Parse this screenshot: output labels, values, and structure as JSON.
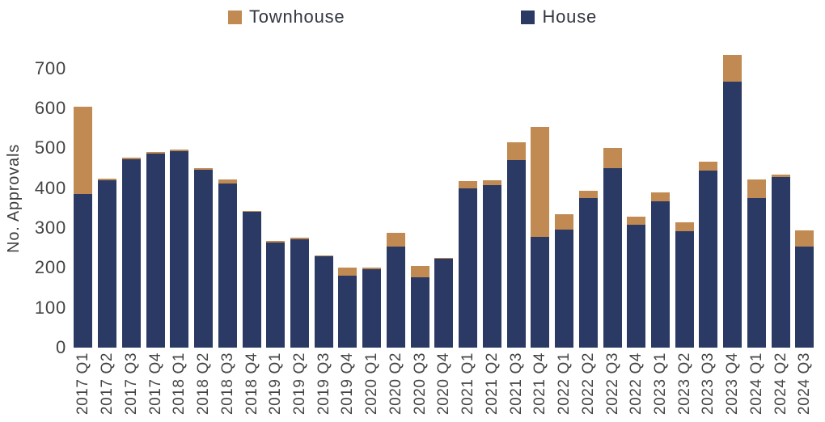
{
  "chart_data": {
    "type": "bar",
    "stacked": true,
    "title": "",
    "xlabel": "",
    "ylabel": "No. Approvals",
    "ylim": [
      0,
      750
    ],
    "yticks": [
      0,
      100,
      200,
      300,
      400,
      500,
      600,
      700
    ],
    "grid": false,
    "legend_position": "top",
    "bar_stack_order_bottom_to_top": [
      "House",
      "Townhouse"
    ],
    "categories": [
      "2017 Q1",
      "2017 Q2",
      "2017 Q3",
      "2017 Q4",
      "2018 Q1",
      "2018 Q2",
      "2018 Q3",
      "2018 Q4",
      "2019 Q1",
      "2019 Q2",
      "2019 Q3",
      "2019 Q4",
      "2020 Q1",
      "2020 Q2",
      "2020 Q3",
      "2020 Q4",
      "2021 Q1",
      "2021 Q2",
      "2021 Q3",
      "2021 Q4",
      "2022 Q1",
      "2022 Q2",
      "2022 Q3",
      "2022 Q4",
      "2023 Q1",
      "2023 Q2",
      "2023 Q3",
      "2023 Q4",
      "2024 Q1",
      "2024 Q2",
      "2024 Q3"
    ],
    "series": [
      {
        "name": "Townhouse",
        "color": "#c08a52",
        "values": [
          220,
          3,
          4,
          4,
          4,
          6,
          10,
          3,
          3,
          3,
          3,
          20,
          4,
          34,
          29,
          3,
          19,
          13,
          45,
          276,
          40,
          19,
          51,
          20,
          23,
          23,
          23,
          66,
          45,
          6,
          40
        ]
      },
      {
        "name": "House",
        "color": "#2b3a64",
        "values": [
          385,
          420,
          472,
          486,
          492,
          445,
          412,
          340,
          264,
          272,
          229,
          180,
          196,
          254,
          176,
          222,
          399,
          407,
          470,
          278,
          295,
          375,
          450,
          309,
          366,
          291,
          443,
          667,
          376,
          428,
          254
        ]
      }
    ]
  },
  "legend": {
    "townhouse_label": "Townhouse",
    "house_label": "House"
  }
}
